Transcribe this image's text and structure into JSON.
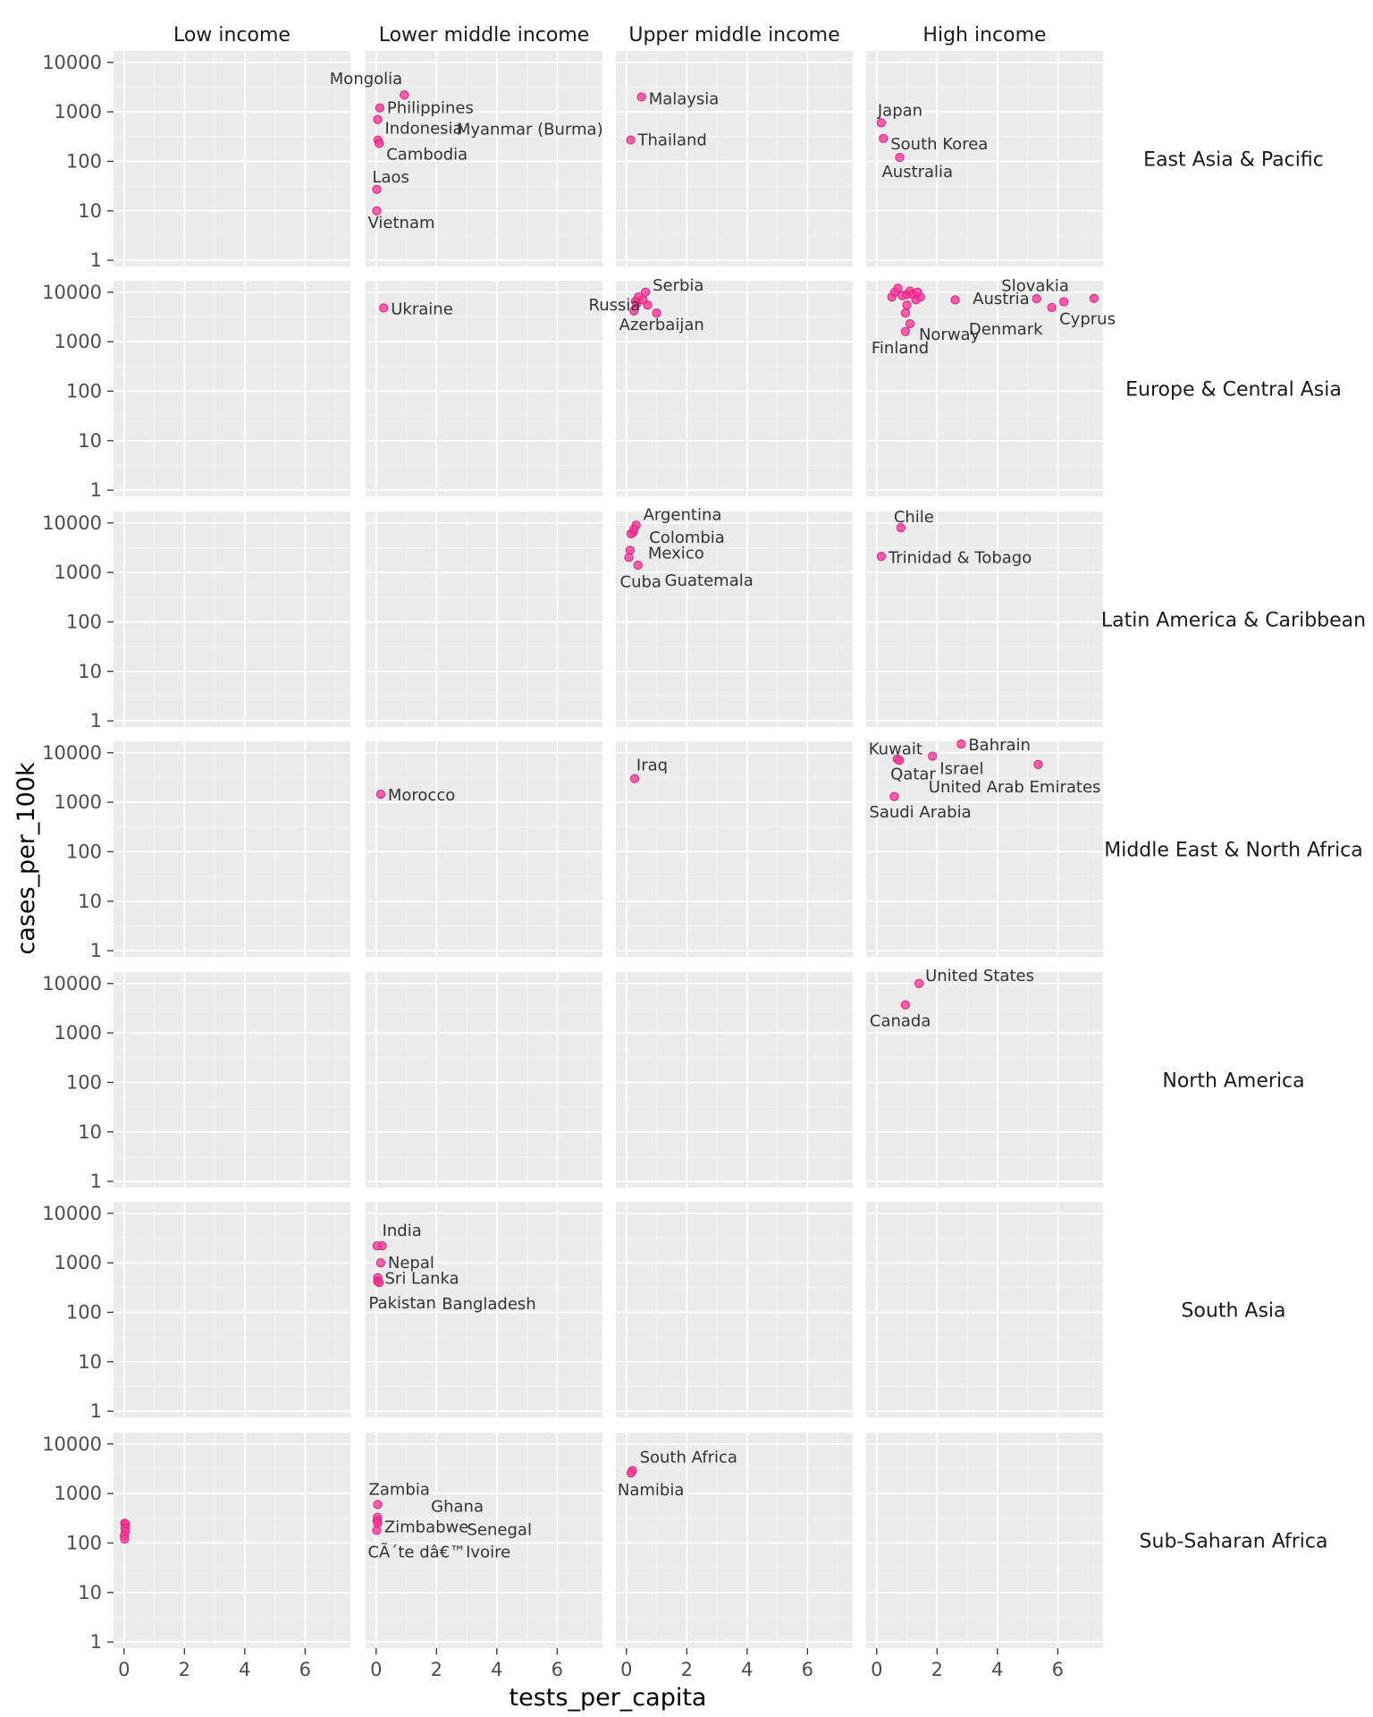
{
  "chart_data": {
    "type": "scatter",
    "title": "",
    "xlabel": "tests_per_capita",
    "ylabel": "cases_per_100k",
    "yscale": "log10",
    "xlim": [
      -0.35,
      7.5
    ],
    "ylim": [
      0.75,
      17000
    ],
    "xticks": [
      0,
      2,
      4,
      6
    ],
    "yticks": [
      1,
      10,
      100,
      1000,
      10000
    ],
    "ytick_labels": [
      "1",
      "10",
      "100",
      "1000",
      "10000"
    ],
    "grid": true,
    "point_color": "#FF3399",
    "panel_background": "#EBEBEB",
    "columns": [
      "Low income",
      "Lower middle income",
      "Upper middle income",
      "High income"
    ],
    "rows": [
      "East Asia & Pacific",
      "Europe & Central Asia",
      "Latin America & Caribbean",
      "Middle East & North Africa",
      "North America",
      "South Asia",
      "Sub-Saharan Africa"
    ],
    "points": [
      {
        "row": 0,
        "col": 1,
        "label": "Mongolia",
        "x": 0.93,
        "y": 2200
      },
      {
        "row": 0,
        "col": 1,
        "label": "Philippines",
        "x": 0.12,
        "y": 1200
      },
      {
        "row": 0,
        "col": 1,
        "label": "Indonesia",
        "x": 0.05,
        "y": 700
      },
      {
        "row": 0,
        "col": 1,
        "label": "Myanmar (Burma)",
        "x": 0.06,
        "y": 270
      },
      {
        "row": 0,
        "col": 1,
        "label": "Cambodia",
        "x": 0.1,
        "y": 230
      },
      {
        "row": 0,
        "col": 1,
        "label": "Laos",
        "x": 0.02,
        "y": 27
      },
      {
        "row": 0,
        "col": 1,
        "label": "Vietnam",
        "x": 0.02,
        "y": 10
      },
      {
        "row": 0,
        "col": 2,
        "label": "Malaysia",
        "x": 0.5,
        "y": 2000
      },
      {
        "row": 0,
        "col": 2,
        "label": "Thailand",
        "x": 0.14,
        "y": 270
      },
      {
        "row": 0,
        "col": 3,
        "label": "Japan",
        "x": 0.15,
        "y": 600
      },
      {
        "row": 0,
        "col": 3,
        "label": "South Korea",
        "x": 0.22,
        "y": 290
      },
      {
        "row": 0,
        "col": 3,
        "label": "Australia",
        "x": 0.76,
        "y": 120
      },
      {
        "row": 1,
        "col": 1,
        "label": "Ukraine",
        "x": 0.25,
        "y": 4800
      },
      {
        "row": 1,
        "col": 2,
        "label": "Serbia",
        "x": 0.63,
        "y": 10000
      },
      {
        "row": 1,
        "col": 2,
        "label": "Russia",
        "x": 0.7,
        "y": 5500
      },
      {
        "row": 1,
        "col": 2,
        "label": "Azerbaijan",
        "x": 0.35,
        "y": 6000
      },
      {
        "row": 1,
        "col": 2,
        "label": "",
        "x": 1.0,
        "y": 3800
      },
      {
        "row": 1,
        "col": 2,
        "label": "",
        "x": 0.4,
        "y": 8000
      },
      {
        "row": 1,
        "col": 2,
        "label": "",
        "x": 0.55,
        "y": 7000
      },
      {
        "row": 1,
        "col": 2,
        "label": "",
        "x": 0.25,
        "y": 4200
      },
      {
        "row": 1,
        "col": 2,
        "label": "",
        "x": 0.3,
        "y": 6500
      },
      {
        "row": 1,
        "col": 3,
        "label": "Slovakia",
        "x": 7.2,
        "y": 7500
      },
      {
        "row": 1,
        "col": 3,
        "label": "Austria",
        "x": 5.3,
        "y": 7400
      },
      {
        "row": 1,
        "col": 3,
        "label": "Cyprus",
        "x": 6.2,
        "y": 6400
      },
      {
        "row": 1,
        "col": 3,
        "label": "Denmark",
        "x": 5.8,
        "y": 4900
      },
      {
        "row": 1,
        "col": 3,
        "label": "Norway",
        "x": 1.1,
        "y": 2300
      },
      {
        "row": 1,
        "col": 3,
        "label": "Finland",
        "x": 0.95,
        "y": 1600
      },
      {
        "row": 1,
        "col": 3,
        "label": "",
        "x": 0.5,
        "y": 8000
      },
      {
        "row": 1,
        "col": 3,
        "label": "",
        "x": 0.6,
        "y": 10000
      },
      {
        "row": 1,
        "col": 3,
        "label": "",
        "x": 0.7,
        "y": 12000
      },
      {
        "row": 1,
        "col": 3,
        "label": "",
        "x": 0.85,
        "y": 8500
      },
      {
        "row": 1,
        "col": 3,
        "label": "",
        "x": 1.0,
        "y": 9000
      },
      {
        "row": 1,
        "col": 3,
        "label": "",
        "x": 1.1,
        "y": 10500
      },
      {
        "row": 1,
        "col": 3,
        "label": "",
        "x": 1.2,
        "y": 9000
      },
      {
        "row": 1,
        "col": 3,
        "label": "",
        "x": 1.3,
        "y": 7000
      },
      {
        "row": 1,
        "col": 3,
        "label": "",
        "x": 1.45,
        "y": 8000
      },
      {
        "row": 1,
        "col": 3,
        "label": "",
        "x": 1.0,
        "y": 5500
      },
      {
        "row": 1,
        "col": 3,
        "label": "",
        "x": 0.95,
        "y": 3800
      },
      {
        "row": 1,
        "col": 3,
        "label": "",
        "x": 1.35,
        "y": 10000
      },
      {
        "row": 1,
        "col": 3,
        "label": "",
        "x": 2.6,
        "y": 7000
      },
      {
        "row": 2,
        "col": 2,
        "label": "Argentina",
        "x": 0.32,
        "y": 9000
      },
      {
        "row": 2,
        "col": 2,
        "label": "Colombia",
        "x": 0.22,
        "y": 6500
      },
      {
        "row": 2,
        "col": 2,
        "label": "Mexico",
        "x": 0.12,
        "y": 2800
      },
      {
        "row": 2,
        "col": 2,
        "label": "Guatemala",
        "x": 0.38,
        "y": 1400
      },
      {
        "row": 2,
        "col": 2,
        "label": "Cuba",
        "x": 0.08,
        "y": 2000
      },
      {
        "row": 2,
        "col": 2,
        "label": "",
        "x": 0.15,
        "y": 6000
      },
      {
        "row": 2,
        "col": 2,
        "label": "",
        "x": 0.25,
        "y": 7500
      },
      {
        "row": 2,
        "col": 3,
        "label": "Chile",
        "x": 0.8,
        "y": 8000
      },
      {
        "row": 2,
        "col": 3,
        "label": "Trinidad & Tobago",
        "x": 0.15,
        "y": 2100
      },
      {
        "row": 3,
        "col": 1,
        "label": "Morocco",
        "x": 0.15,
        "y": 1450
      },
      {
        "row": 3,
        "col": 2,
        "label": "Iraq",
        "x": 0.27,
        "y": 3000
      },
      {
        "row": 3,
        "col": 3,
        "label": "Bahrain",
        "x": 2.8,
        "y": 15000
      },
      {
        "row": 3,
        "col": 3,
        "label": "Kuwait",
        "x": 0.68,
        "y": 7500
      },
      {
        "row": 3,
        "col": 3,
        "label": "Israel",
        "x": 1.85,
        "y": 8500
      },
      {
        "row": 3,
        "col": 3,
        "label": "Qatar",
        "x": 0.75,
        "y": 7000
      },
      {
        "row": 3,
        "col": 3,
        "label": "United Arab Emirates",
        "x": 5.35,
        "y": 5800
      },
      {
        "row": 3,
        "col": 3,
        "label": "Saudi Arabia",
        "x": 0.58,
        "y": 1300
      },
      {
        "row": 4,
        "col": 3,
        "label": "United States",
        "x": 1.4,
        "y": 10000
      },
      {
        "row": 4,
        "col": 3,
        "label": "Canada",
        "x": 0.95,
        "y": 3700
      },
      {
        "row": 5,
        "col": 1,
        "label": "India",
        "x": 0.2,
        "y": 2200
      },
      {
        "row": 5,
        "col": 1,
        "label": "Nepal",
        "x": 0.15,
        "y": 1000
      },
      {
        "row": 5,
        "col": 1,
        "label": "Sri Lanka",
        "x": 0.05,
        "y": 500
      },
      {
        "row": 5,
        "col": 1,
        "label": "Pakistan",
        "x": 0.05,
        "y": 420
      },
      {
        "row": 5,
        "col": 1,
        "label": "Bangladesh",
        "x": 0.1,
        "y": 400
      },
      {
        "row": 5,
        "col": 1,
        "label": "",
        "x": 0.03,
        "y": 2200
      },
      {
        "row": 6,
        "col": 0,
        "label": "",
        "x": 0.02,
        "y": 250
      },
      {
        "row": 6,
        "col": 0,
        "label": "",
        "x": 0.05,
        "y": 240
      },
      {
        "row": 6,
        "col": 0,
        "label": "",
        "x": 0.03,
        "y": 200
      },
      {
        "row": 6,
        "col": 0,
        "label": "",
        "x": 0.04,
        "y": 170
      },
      {
        "row": 6,
        "col": 0,
        "label": "",
        "x": 0.01,
        "y": 140
      },
      {
        "row": 6,
        "col": 0,
        "label": "",
        "x": 0.02,
        "y": 120
      },
      {
        "row": 6,
        "col": 1,
        "label": "Zambia",
        "x": 0.05,
        "y": 600
      },
      {
        "row": 6,
        "col": 1,
        "label": "Ghana",
        "x": 0.04,
        "y": 330
      },
      {
        "row": 6,
        "col": 1,
        "label": "Zimbabwe",
        "x": 0.03,
        "y": 280
      },
      {
        "row": 6,
        "col": 1,
        "label": "Senegal",
        "x": 0.05,
        "y": 250
      },
      {
        "row": 6,
        "col": 1,
        "label": "CÃ´te dâ€™Ivoire",
        "x": 0.02,
        "y": 180
      },
      {
        "row": 6,
        "col": 2,
        "label": "South Africa",
        "x": 0.2,
        "y": 2900
      },
      {
        "row": 6,
        "col": 2,
        "label": "Namibia",
        "x": 0.15,
        "y": 2600
      }
    ]
  }
}
